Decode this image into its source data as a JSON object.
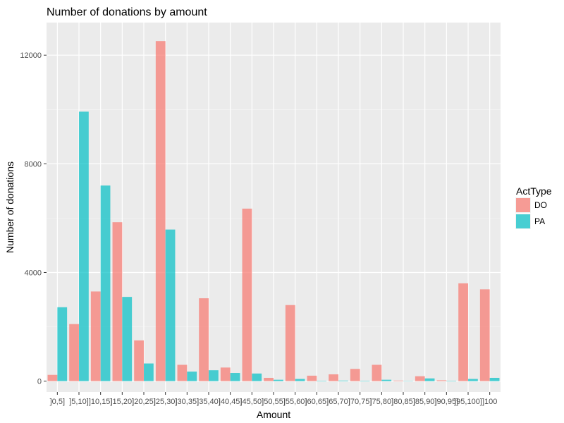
{
  "chart_data": {
    "type": "bar",
    "title": "Number of donations by amount",
    "xlabel": "Amount",
    "ylabel": "Number of donations",
    "ylim": [
      -400,
      13200
    ],
    "yticks": [
      0,
      4000,
      8000,
      12000
    ],
    "yticklabels": [
      "0",
      "4000",
      "8000",
      "12000"
    ],
    "grid": true,
    "legend": {
      "title": "ActType",
      "position": "right"
    },
    "categories": [
      "]0,5]",
      "]5,10]",
      "]10,15]",
      "]15,20]",
      "]20,25]",
      "]25,30]",
      "]30,35]",
      "]35,40]",
      "]40,45]",
      "]45,50]",
      "]50,55]",
      "]55,60]",
      "]60,65]",
      "]65,70]",
      "]70,75]",
      "]75,80]",
      "]80,85]",
      "]85,90]",
      "]90,95]",
      "]95,100]",
      "]100"
    ],
    "series": [
      {
        "name": "DO",
        "color": "#F8766D",
        "values": [
          230,
          2100,
          3300,
          5850,
          1500,
          12520,
          600,
          3050,
          500,
          6350,
          120,
          2800,
          200,
          250,
          450,
          600,
          20,
          180,
          30,
          3600,
          3380
        ]
      },
      {
        "name": "PA",
        "color": "#00BFC4",
        "values": [
          2720,
          9920,
          7200,
          3100,
          650,
          5580,
          350,
          400,
          300,
          280,
          50,
          80,
          15,
          20,
          15,
          50,
          10,
          100,
          15,
          80,
          120
        ]
      }
    ]
  }
}
